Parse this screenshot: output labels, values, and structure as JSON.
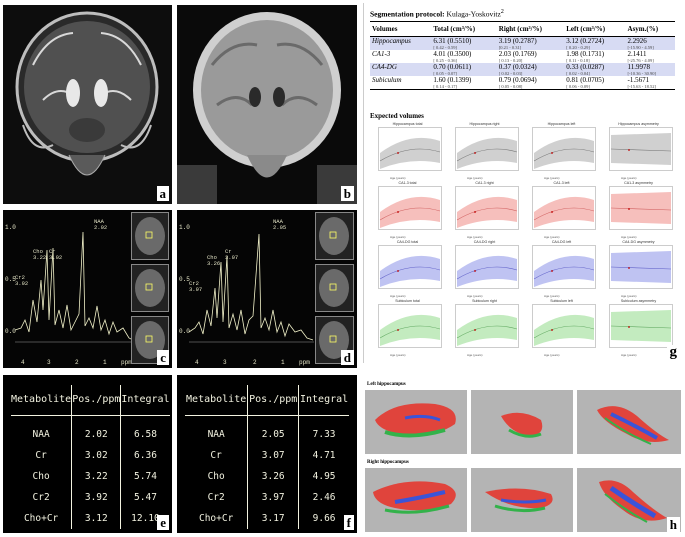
{
  "panels": {
    "a": "a",
    "b": "b",
    "c": "c",
    "d": "d",
    "e": "e",
    "f": "f",
    "g": "g",
    "h": "h"
  },
  "spectra": {
    "c": {
      "yticks": [
        "1.0",
        "0.5",
        "0.0"
      ],
      "xticks": [
        "4",
        "3",
        "2",
        "1",
        "ppm"
      ],
      "peak_labels": [
        "NAA",
        "2.02",
        "Cho",
        "3.22",
        "Cr",
        "3.02",
        "Cr2",
        "3.92"
      ]
    },
    "d": {
      "yticks": [
        "1.0",
        "0.5",
        "0.0"
      ],
      "xticks": [
        "4",
        "3",
        "2",
        "1",
        "ppm"
      ],
      "peak_labels": [
        "NAA",
        "2.05",
        "Cho",
        "3.26",
        "Cr",
        "3.07",
        "Cr2",
        "3.97"
      ]
    }
  },
  "table_e": {
    "headers": [
      "Metabolite",
      "Pos./ppm",
      "Integral"
    ],
    "rows": [
      [
        "NAA",
        "2.02",
        "6.58"
      ],
      [
        "Cr",
        "3.02",
        "6.36"
      ],
      [
        "Cho",
        "3.22",
        "5.74"
      ],
      [
        "Cr2",
        "3.92",
        "5.47"
      ],
      [
        "Cho+Cr",
        "3.12",
        "12.10"
      ]
    ]
  },
  "table_f": {
    "headers": [
      "Metabolite",
      "Pos./ppm",
      "Integral"
    ],
    "rows": [
      [
        "NAA",
        "2.05",
        "7.33"
      ],
      [
        "Cr",
        "3.07",
        "4.71"
      ],
      [
        "Cho",
        "3.26",
        "4.95"
      ],
      [
        "Cr2",
        "3.97",
        "2.46"
      ],
      [
        "Cho+Cr",
        "3.17",
        "9.66"
      ]
    ]
  },
  "panel_g": {
    "title_bold": "Segmentation protocol:",
    "title_rest": " Kulaga-Yoskovitz",
    "title_sup": "2",
    "headers": [
      "Volumes",
      "Total (cm³/%)",
      "Right (cm³/%)",
      "Left (cm³/%)",
      "Asym.(%)"
    ],
    "rows": [
      {
        "name": "Hippocampus",
        "total": "6.31 (0.5510)",
        "right": "3.19 (0.2787)",
        "left": "3.12 (0.2724)",
        "asym": "2.2926",
        "ci": [
          "[ 0.42 - 0.59]",
          "[0.21 - 0.31]",
          "[ 0.20 - 0.29]",
          "[-15.90 - 4.59]"
        ]
      },
      {
        "name": "CA1-3",
        "total": "4.01 (0.3500)",
        "right": "2.03 (0.1769)",
        "left": "1.98 (0.1731)",
        "asym": "2.1411",
        "ci": [
          "[ 0.25 - 0.36]",
          "[ 0.13 - 0.20]",
          "[ 0.11 - 0.18]",
          "[-25.76 - 4.09]"
        ]
      },
      {
        "name": "CA4-DG",
        "total": "0.70 (0.0611)",
        "right": "0.37 (0.0324)",
        "left": "0.33 (0.0287)",
        "asym": "11.9978",
        "ci": [
          "[ 0.05 - 0.07]",
          "[ 0.02 - 0.03]",
          "[ 0.02 - 0.04]",
          "[-10.36 - 30.90]"
        ]
      },
      {
        "name": "Subiculum",
        "total": "1.60 (0.1399)",
        "right": "0.79 (0.0694)",
        "left": "0.81 (0.0705)",
        "asym": "-1.5671",
        "ci": [
          "[ 0.14 - 0.17]",
          "[ 0.05 - 0.08]",
          "[ 0.06 - 0.09]",
          "[-15.63 - 18.52]"
        ]
      }
    ],
    "expected_title": "Expected volumes",
    "subplot_titles": [
      [
        "Hippocampus total",
        "Hippocampus right",
        "Hippocampus left",
        "Hippocampus asymmetry"
      ],
      [
        "CA1-3 total",
        "CA1-3 right",
        "CA1-3 left",
        "CA1-3 asymmetry"
      ],
      [
        "CA4-DG total",
        "CA4-DG right",
        "CA4-DG left",
        "CA4-DG asymmetry"
      ],
      [
        "Subiculum total",
        "Subiculum right",
        "Subiculum left",
        "Subiculum asymmetry"
      ]
    ],
    "x_label": "Age (years)",
    "band_colors": [
      "#c8c8c8",
      "#f4b4b0",
      "#b4b8f0",
      "#b8e8b4"
    ],
    "line_colors": [
      "#777777",
      "#d06060",
      "#6060c8",
      "#60a860"
    ]
  },
  "panel_h": {
    "left_label": "Left hippocampus",
    "right_label": "Right hippocampus",
    "seg_colors": {
      "ca13": "#e0443c",
      "ca4dg": "#3b54d8",
      "subiculum": "#33b24a"
    }
  }
}
